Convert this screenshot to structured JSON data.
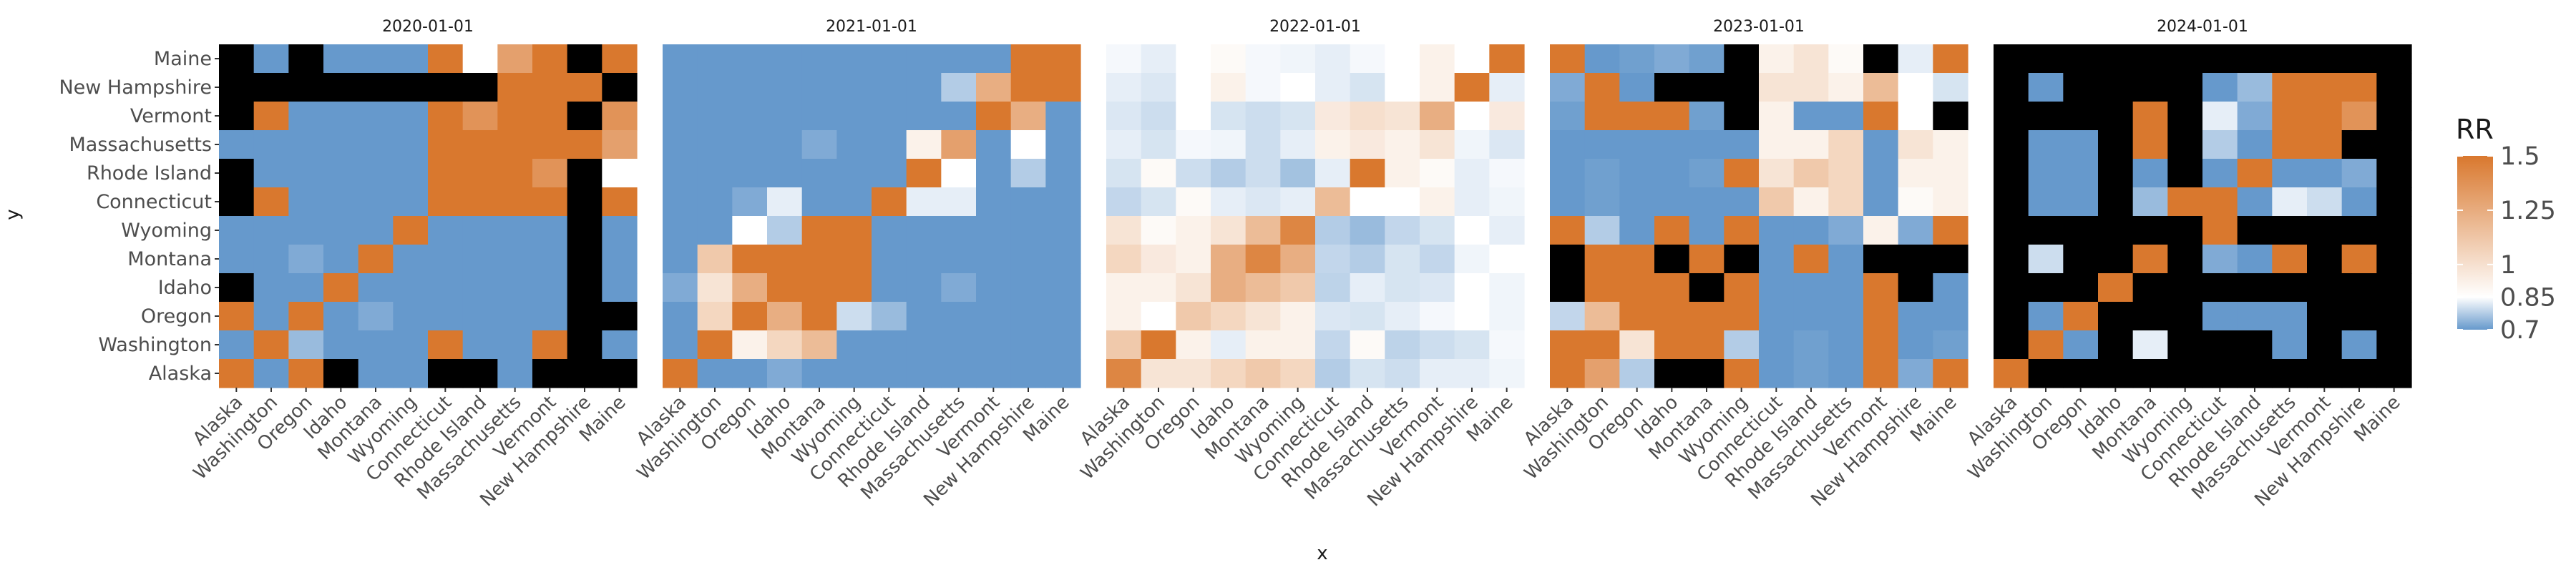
{
  "chart_data": {
    "type": "heatmap",
    "facets": [
      "2020-01-01",
      "2021-01-01",
      "2022-01-01",
      "2023-01-01",
      "2024-01-01"
    ],
    "x_categories": [
      "Alaska",
      "Washington",
      "Oregon",
      "Idaho",
      "Montana",
      "Wyoming",
      "Connecticut",
      "Rhode Island",
      "Massachusetts",
      "Vermont",
      "New Hampshire",
      "Maine"
    ],
    "y_categories": [
      "Maine",
      "New Hampshire",
      "Vermont",
      "Massachusetts",
      "Rhode Island",
      "Connecticut",
      "Wyoming",
      "Montana",
      "Idaho",
      "Oregon",
      "Washington",
      "Alaska"
    ],
    "xlabel": "x",
    "ylabel": "y",
    "fill_scale": {
      "title": "RR",
      "breaks": [
        0.7,
        0.85,
        1,
        1.25,
        1.5
      ],
      "limits": [
        0.7,
        1.5
      ],
      "low_color": "#6699cc",
      "mid_color": "#ffffff",
      "high_color": "#d9782e",
      "na_color": "#000000"
    },
    "panels": [
      {
        "facet": "2020-01-01",
        "rows": [
          [
            null,
            0.7,
            null,
            0.7,
            0.7,
            0.7,
            1.5,
            1.0,
            1.35,
            1.5,
            null,
            1.5
          ],
          [
            null,
            null,
            null,
            null,
            null,
            null,
            null,
            null,
            1.5,
            1.5,
            1.5,
            null
          ],
          [
            null,
            1.5,
            0.7,
            0.7,
            0.7,
            0.7,
            1.5,
            1.4,
            1.5,
            1.5,
            null,
            1.4
          ],
          [
            0.7,
            0.7,
            0.7,
            0.7,
            0.7,
            0.7,
            1.5,
            1.5,
            1.5,
            1.5,
            1.5,
            1.35
          ],
          [
            null,
            0.7,
            0.7,
            0.7,
            0.7,
            0.7,
            1.5,
            1.5,
            1.5,
            1.4,
            null,
            1.0
          ],
          [
            null,
            1.5,
            0.7,
            0.7,
            0.7,
            0.7,
            1.5,
            1.5,
            1.5,
            1.5,
            null,
            1.5
          ],
          [
            0.7,
            0.7,
            0.7,
            0.7,
            0.7,
            1.5,
            0.7,
            0.7,
            0.7,
            0.7,
            null,
            0.7
          ],
          [
            0.7,
            0.7,
            0.75,
            0.7,
            1.5,
            0.7,
            0.7,
            0.7,
            0.7,
            0.7,
            null,
            0.7
          ],
          [
            null,
            0.7,
            0.7,
            1.5,
            0.7,
            0.7,
            0.7,
            0.7,
            0.7,
            0.7,
            null,
            0.7
          ],
          [
            1.5,
            0.7,
            1.5,
            0.7,
            0.75,
            0.7,
            0.7,
            0.7,
            0.7,
            0.7,
            null,
            null
          ],
          [
            0.7,
            1.5,
            0.8,
            0.7,
            0.7,
            0.7,
            1.5,
            0.7,
            0.7,
            1.5,
            null,
            0.7
          ],
          [
            1.5,
            0.7,
            1.5,
            null,
            0.7,
            0.7,
            null,
            null,
            0.7,
            null,
            null,
            null
          ]
        ]
      },
      {
        "facet": "2021-01-01",
        "rows": [
          [
            0.7,
            0.7,
            0.7,
            0.7,
            0.7,
            0.7,
            0.7,
            0.7,
            0.7,
            0.7,
            1.5,
            1.5
          ],
          [
            0.7,
            0.7,
            0.7,
            0.7,
            0.7,
            0.7,
            0.7,
            0.7,
            0.85,
            1.3,
            1.5,
            1.5
          ],
          [
            0.7,
            0.7,
            0.7,
            0.7,
            0.7,
            0.7,
            0.7,
            0.7,
            0.7,
            1.5,
            1.3,
            0.7
          ],
          [
            0.7,
            0.7,
            0.7,
            0.7,
            0.75,
            0.7,
            0.7,
            1.05,
            1.35,
            0.7,
            1.0,
            0.7
          ],
          [
            0.7,
            0.7,
            0.7,
            0.7,
            0.7,
            0.7,
            0.7,
            1.5,
            1.0,
            0.7,
            0.85,
            0.7
          ],
          [
            0.7,
            0.7,
            0.75,
            0.95,
            0.7,
            0.7,
            1.5,
            0.95,
            0.95,
            0.7,
            0.7,
            0.7
          ],
          [
            0.7,
            0.7,
            1.0,
            0.85,
            1.5,
            1.5,
            0.7,
            0.7,
            0.7,
            0.7,
            0.7,
            0.7
          ],
          [
            0.7,
            1.2,
            1.5,
            1.5,
            1.5,
            1.5,
            0.7,
            0.7,
            0.7,
            0.7,
            0.7,
            0.7
          ],
          [
            0.75,
            1.1,
            1.3,
            1.5,
            1.5,
            1.5,
            0.7,
            0.7,
            0.75,
            0.7,
            0.7,
            0.7
          ],
          [
            0.7,
            1.15,
            1.5,
            1.3,
            1.5,
            0.9,
            0.8,
            0.7,
            0.7,
            0.7,
            0.7,
            0.7
          ],
          [
            0.7,
            1.5,
            1.05,
            1.15,
            1.25,
            0.7,
            0.7,
            0.7,
            0.7,
            0.7,
            0.7,
            0.7
          ],
          [
            1.5,
            0.7,
            0.7,
            0.75,
            0.7,
            0.7,
            0.7,
            0.7,
            0.7,
            0.7,
            0.7,
            0.7
          ]
        ]
      },
      {
        "facet": "2022-01-01",
        "rows": [
          [
            0.98,
            0.95,
            1.0,
            1.02,
            0.98,
            0.97,
            0.95,
            0.98,
            1.0,
            1.05,
            1.0,
            1.5
          ],
          [
            0.95,
            0.93,
            1.0,
            1.05,
            0.98,
            1.0,
            0.95,
            0.92,
            1.0,
            1.05,
            1.5,
            0.95
          ],
          [
            0.93,
            0.9,
            1.0,
            0.92,
            0.9,
            0.92,
            1.08,
            1.12,
            1.1,
            1.3,
            1.0,
            1.08
          ],
          [
            0.95,
            0.92,
            0.98,
            0.97,
            0.9,
            0.95,
            1.05,
            1.08,
            1.05,
            1.1,
            0.97,
            0.93
          ],
          [
            0.92,
            1.02,
            0.9,
            0.85,
            0.9,
            0.82,
            0.95,
            1.5,
            1.05,
            1.02,
            0.95,
            0.98
          ],
          [
            0.88,
            0.92,
            1.02,
            0.95,
            0.93,
            0.95,
            1.25,
            1.0,
            1.0,
            1.05,
            0.95,
            0.97
          ],
          [
            1.1,
            1.02,
            1.05,
            1.1,
            1.25,
            1.45,
            0.85,
            0.8,
            0.88,
            0.92,
            1.0,
            0.95
          ],
          [
            1.15,
            1.08,
            1.05,
            1.3,
            1.45,
            1.3,
            0.88,
            0.85,
            0.92,
            0.88,
            0.97,
            1.0
          ],
          [
            1.05,
            1.05,
            1.1,
            1.3,
            1.25,
            1.2,
            0.87,
            0.95,
            0.92,
            0.93,
            1.0,
            0.97
          ],
          [
            1.05,
            1.0,
            1.2,
            1.15,
            1.1,
            1.05,
            0.93,
            0.92,
            0.95,
            0.98,
            1.0,
            0.97
          ],
          [
            1.2,
            1.5,
            1.05,
            0.95,
            1.05,
            1.05,
            0.88,
            1.02,
            0.87,
            0.9,
            0.92,
            0.98
          ],
          [
            1.45,
            1.1,
            1.1,
            1.15,
            1.2,
            1.15,
            0.85,
            0.92,
            0.9,
            0.95,
            0.95,
            0.97
          ]
        ]
      },
      {
        "facet": "2023-01-01",
        "rows": [
          [
            1.5,
            0.7,
            0.72,
            0.75,
            0.72,
            null,
            1.05,
            1.1,
            1.02,
            null,
            0.95,
            1.5
          ],
          [
            0.75,
            1.5,
            0.7,
            null,
            null,
            null,
            1.1,
            1.1,
            1.05,
            1.25,
            1.0,
            0.92
          ],
          [
            0.72,
            1.5,
            1.5,
            1.5,
            0.72,
            null,
            1.05,
            0.7,
            0.7,
            1.5,
            1.0,
            null
          ],
          [
            0.7,
            0.7,
            0.7,
            0.7,
            0.7,
            0.7,
            1.05,
            1.05,
            1.15,
            0.7,
            1.1,
            1.05
          ],
          [
            0.7,
            0.72,
            0.7,
            0.7,
            0.72,
            1.5,
            1.1,
            1.2,
            1.15,
            0.7,
            1.05,
            1.05
          ],
          [
            0.7,
            0.72,
            0.7,
            0.7,
            0.7,
            0.7,
            1.2,
            1.05,
            1.15,
            0.7,
            1.02,
            1.05
          ],
          [
            1.5,
            0.85,
            0.7,
            1.5,
            0.7,
            1.5,
            0.7,
            0.7,
            0.75,
            1.05,
            0.75,
            1.5
          ],
          [
            null,
            1.5,
            1.5,
            null,
            1.5,
            null,
            0.7,
            1.5,
            0.7,
            null,
            null,
            null
          ],
          [
            null,
            1.5,
            1.5,
            1.5,
            null,
            1.5,
            0.7,
            0.7,
            0.7,
            1.5,
            null,
            0.7
          ],
          [
            0.88,
            1.25,
            1.5,
            1.5,
            1.5,
            1.5,
            0.7,
            0.7,
            0.7,
            1.5,
            0.7,
            0.7
          ],
          [
            1.5,
            1.5,
            1.1,
            1.5,
            1.5,
            0.85,
            0.7,
            0.72,
            0.7,
            1.5,
            0.7,
            0.72
          ],
          [
            1.5,
            1.35,
            0.85,
            null,
            null,
            1.5,
            0.7,
            0.72,
            0.7,
            1.5,
            0.75,
            1.5
          ]
        ]
      },
      {
        "facet": "2024-01-01",
        "rows": [
          [
            null,
            null,
            null,
            null,
            null,
            null,
            null,
            null,
            null,
            null,
            null,
            null
          ],
          [
            null,
            0.7,
            null,
            null,
            null,
            null,
            0.7,
            0.8,
            1.5,
            1.5,
            1.5,
            null
          ],
          [
            null,
            null,
            null,
            null,
            1.5,
            null,
            0.95,
            0.75,
            1.5,
            1.5,
            1.4,
            null
          ],
          [
            null,
            0.7,
            0.7,
            null,
            1.5,
            null,
            0.85,
            0.7,
            1.5,
            1.5,
            null,
            null
          ],
          [
            null,
            0.7,
            0.7,
            null,
            0.7,
            null,
            0.7,
            1.5,
            0.7,
            0.7,
            0.75,
            null
          ],
          [
            null,
            0.7,
            0.7,
            null,
            0.8,
            1.5,
            1.5,
            0.7,
            0.95,
            0.9,
            0.7,
            null
          ],
          [
            null,
            null,
            null,
            null,
            null,
            null,
            1.5,
            null,
            null,
            null,
            null,
            null
          ],
          [
            null,
            0.9,
            null,
            null,
            1.5,
            null,
            0.75,
            0.7,
            1.5,
            null,
            1.5,
            null
          ],
          [
            null,
            null,
            null,
            1.5,
            null,
            null,
            null,
            null,
            null,
            null,
            null,
            null
          ],
          [
            null,
            0.7,
            1.5,
            null,
            null,
            null,
            0.7,
            0.7,
            0.7,
            null,
            null,
            null
          ],
          [
            null,
            1.5,
            0.7,
            null,
            0.95,
            null,
            null,
            null,
            0.7,
            null,
            0.7,
            null
          ],
          [
            1.5,
            null,
            null,
            null,
            null,
            null,
            null,
            null,
            null,
            null,
            null,
            null
          ]
        ]
      }
    ]
  }
}
